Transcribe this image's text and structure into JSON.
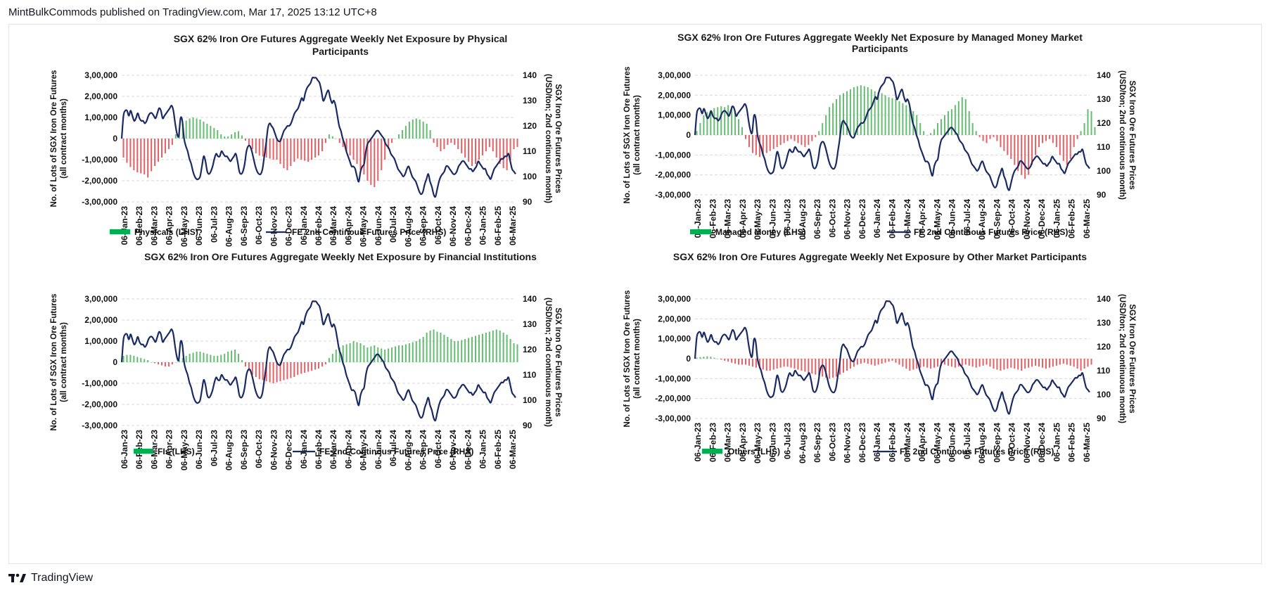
{
  "header": {
    "attribution": "MintBulkCommods published on TradingView.com, Mar 17, 2025 13:12 UTC+8"
  },
  "footer": {
    "brand": "TradingView"
  },
  "colors": {
    "positive": "#4cb25c",
    "negative": "#e0474c",
    "price_line": "#1a2a63",
    "grid": "#d9d9d9",
    "legend_green": "#00b050"
  },
  "shared": {
    "x_tick_labels": [
      "06-Jan-23",
      "06-Feb-23",
      "06-Mar-23",
      "06-Apr-23",
      "06-May-23",
      "06-Jun-23",
      "06-Jul-23",
      "06-Aug-23",
      "06-Sep-23",
      "06-Oct-23",
      "06-Nov-23",
      "06-Dec-23",
      "06-Jan-24",
      "06-Feb-24",
      "06-Mar-24",
      "06-Apr-24",
      "06-May-24",
      "06-Jun-24",
      "06-Jul-24",
      "06-Aug-24",
      "06-Sep-24",
      "06-Oct-24",
      "06-Nov-24",
      "06-Dec-24",
      "06-Jan-25",
      "06-Feb-25",
      "06-Mar-25"
    ],
    "y_left_ticks": [
      "3,00,000",
      "2,00,000",
      "1,00,000",
      "0",
      "-1,00,000",
      "-2,00,000",
      "-3,00,000"
    ],
    "y_right_ticks": [
      "140",
      "130",
      "120",
      "110",
      "100",
      "90"
    ],
    "ylabel_left": [
      "No. of Lots of SGX Iron Ore Futures",
      "(all contract months)"
    ],
    "ylabel_right": [
      "SGX Iron Ore Futures Prices",
      "(USD/ton; 2nd continuous month)"
    ],
    "price_series_name": "FE 2nd Continous Futures Price (RHS)",
    "price_values": [
      115,
      124,
      126,
      126,
      124,
      126,
      124,
      122,
      123,
      125,
      123,
      122,
      122,
      121,
      122,
      124,
      125,
      125,
      124,
      123,
      125,
      127,
      126,
      123,
      124,
      125,
      126,
      127,
      128,
      126,
      121,
      117,
      116,
      123,
      122,
      115,
      112,
      110,
      107,
      105,
      102,
      100,
      99,
      99,
      100,
      104,
      108,
      106,
      102,
      101,
      102,
      104,
      107,
      109,
      108,
      108,
      110,
      109,
      108,
      108,
      107,
      106,
      107,
      108,
      109,
      106,
      102,
      101,
      102,
      105,
      110,
      112,
      112,
      110,
      107,
      104,
      102,
      101,
      101,
      103,
      108,
      113,
      119,
      121,
      120,
      119,
      117,
      115,
      114,
      114,
      116,
      118,
      119,
      120,
      120,
      121,
      123,
      125,
      126,
      127,
      129,
      131,
      130,
      133,
      135,
      136,
      137,
      139,
      139,
      139,
      138,
      137,
      134,
      130,
      131,
      133,
      134,
      131,
      129,
      130,
      128,
      124,
      120,
      118,
      115,
      113,
      110,
      108,
      106,
      104,
      104,
      103,
      100,
      98,
      102,
      104,
      105,
      110,
      113,
      114,
      115,
      116,
      117,
      118,
      118,
      117,
      116,
      115,
      113,
      112,
      111,
      109,
      108,
      107,
      105,
      103,
      102,
      101,
      100,
      101,
      103,
      104,
      102,
      100,
      99,
      98,
      96,
      94,
      93,
      94,
      97,
      99,
      101,
      98,
      96,
      93,
      92,
      95,
      98,
      100,
      101,
      102,
      104,
      104,
      103,
      102,
      101,
      101,
      102,
      104,
      105,
      106,
      106,
      105,
      104,
      103,
      103,
      102,
      103,
      104,
      106,
      105,
      104,
      103,
      103,
      101,
      100,
      99,
      101,
      103,
      104,
      105,
      106,
      107,
      107,
      108,
      108,
      109,
      106,
      103,
      102,
      101
    ],
    "xlim": [
      0,
      113
    ],
    "y_left_range": [
      -300000,
      300000
    ],
    "y_right_range": [
      90,
      140
    ]
  },
  "chart_data": [
    {
      "type": "bar",
      "id": "physical",
      "title": [
        "SGX 62% Iron Ore Futures Aggregate Weekly Net Exposure by Physical",
        "Participants"
      ],
      "legend_bar": "Physicals (LHS)",
      "legend_line": "FE 2nd Continous Futures Price (RHS)",
      "values": [
        -90000,
        -115000,
        -135000,
        -150000,
        -160000,
        -165000,
        -170000,
        -185000,
        -155000,
        -130000,
        -110000,
        -90000,
        -70000,
        -50000,
        -30000,
        20000,
        50000,
        70000,
        85000,
        95000,
        100000,
        95000,
        90000,
        80000,
        70000,
        60000,
        50000,
        40000,
        20000,
        10000,
        10000,
        20000,
        30000,
        35000,
        15000,
        -10000,
        -30000,
        -50000,
        -70000,
        -80000,
        -85000,
        -90000,
        -95000,
        -100000,
        -100000,
        -120000,
        -140000,
        -150000,
        -130000,
        -110000,
        -95000,
        -100000,
        -105000,
        -110000,
        -100000,
        -90000,
        -80000,
        -60000,
        -20000,
        20000,
        10000,
        0,
        -20000,
        -40000,
        -60000,
        -80000,
        -100000,
        -120000,
        -150000,
        -170000,
        -200000,
        -220000,
        -230000,
        -200000,
        -150000,
        -100000,
        -50000,
        -20000,
        0,
        20000,
        40000,
        60000,
        80000,
        90000,
        95000,
        90000,
        80000,
        70000,
        40000,
        -20000,
        -40000,
        -60000,
        -50000,
        -30000,
        -20000,
        -30000,
        -50000,
        -70000,
        -90000,
        -110000,
        -130000,
        -120000,
        -100000,
        -80000,
        -60000,
        -40000,
        -60000,
        -90000,
        -120000,
        -140000,
        -150000,
        -100000,
        -50000,
        -40000
      ]
    },
    {
      "type": "bar",
      "id": "managed_money",
      "title": [
        "SGX 62% Iron Ore Futures Aggregate Weekly Net Exposure by Managed Money Market",
        "Participants"
      ],
      "legend_bar": "Managed Money (LHS)",
      "legend_line": "FE 2nd Continous Futures Price (RHS)",
      "values": [
        20000,
        60000,
        100000,
        115000,
        125000,
        135000,
        140000,
        145000,
        140000,
        150000,
        145000,
        120000,
        80000,
        40000,
        -20000,
        -60000,
        -90000,
        -100000,
        -110000,
        -100000,
        -90000,
        -80000,
        -70000,
        -60000,
        -50000,
        -40000,
        -30000,
        -20000,
        -30000,
        -40000,
        -50000,
        -60000,
        -50000,
        -30000,
        -10000,
        20000,
        60000,
        100000,
        140000,
        160000,
        180000,
        200000,
        210000,
        220000,
        230000,
        240000,
        245000,
        250000,
        245000,
        240000,
        230000,
        220000,
        215000,
        210000,
        200000,
        190000,
        185000,
        180000,
        170000,
        160000,
        150000,
        140000,
        120000,
        100000,
        60000,
        20000,
        0,
        10000,
        30000,
        60000,
        80000,
        100000,
        120000,
        130000,
        150000,
        170000,
        190000,
        180000,
        120000,
        60000,
        20000,
        -10000,
        -30000,
        -40000,
        -20000,
        -10000,
        -30000,
        -60000,
        -80000,
        -100000,
        -120000,
        -150000,
        -180000,
        -200000,
        -220000,
        -200000,
        -150000,
        -100000,
        -60000,
        -40000,
        -30000,
        -20000,
        -40000,
        -60000,
        -100000,
        -130000,
        -150000,
        -120000,
        -60000,
        -20000,
        20000,
        60000,
        130000,
        120000,
        40000
      ]
    },
    {
      "type": "bar",
      "id": "financial_institutions",
      "title": [
        "SGX 62% Iron Ore Futures Aggregate Weekly Net Exposure by Financial Institutions"
      ],
      "legend_bar": "FIs (LHS)",
      "legend_line": "FE 2nd Continous Futures Price (RHS)",
      "values": [
        30000,
        35000,
        35000,
        30000,
        25000,
        20000,
        15000,
        10000,
        0,
        -5000,
        -10000,
        -15000,
        -20000,
        -20000,
        -10000,
        0,
        10000,
        20000,
        30000,
        40000,
        45000,
        50000,
        50000,
        45000,
        40000,
        35000,
        30000,
        30000,
        35000,
        40000,
        50000,
        55000,
        60000,
        40000,
        10000,
        -20000,
        -40000,
        -60000,
        -70000,
        -80000,
        -85000,
        -90000,
        -95000,
        -100000,
        -95000,
        -90000,
        -85000,
        -80000,
        -75000,
        -70000,
        -60000,
        -55000,
        -50000,
        -45000,
        -40000,
        -35000,
        -30000,
        -20000,
        -10000,
        20000,
        40000,
        60000,
        70000,
        80000,
        85000,
        90000,
        100000,
        95000,
        90000,
        80000,
        70000,
        75000,
        80000,
        70000,
        65000,
        60000,
        65000,
        70000,
        75000,
        80000,
        80000,
        85000,
        90000,
        95000,
        100000,
        110000,
        120000,
        140000,
        150000,
        155000,
        145000,
        140000,
        130000,
        120000,
        110000,
        100000,
        100000,
        105000,
        110000,
        115000,
        120000,
        125000,
        130000,
        135000,
        140000,
        145000,
        150000,
        155000,
        150000,
        140000,
        130000,
        110000,
        90000,
        85000
      ]
    },
    {
      "type": "bar",
      "id": "others",
      "title": [
        "SGX 62% Iron Ore Futures Aggregate Weekly Net Exposure by Other Market Participants"
      ],
      "legend_bar": "Others (LHS)",
      "legend_line": "FE 2nd Continous Futures Price (RHS)",
      "values": [
        5000,
        8000,
        10000,
        12000,
        10000,
        5000,
        0,
        -5000,
        -10000,
        -15000,
        -20000,
        -25000,
        -30000,
        -30000,
        -30000,
        -35000,
        -40000,
        -45000,
        -50000,
        -55000,
        -60000,
        -60000,
        -55000,
        -50000,
        -45000,
        -40000,
        -40000,
        -45000,
        -50000,
        -55000,
        -60000,
        -65000,
        -70000,
        -75000,
        -80000,
        -85000,
        -90000,
        -95000,
        -100000,
        -95000,
        -90000,
        -80000,
        -70000,
        -60000,
        -50000,
        -40000,
        -30000,
        -25000,
        -20000,
        -25000,
        -30000,
        -35000,
        -30000,
        -25000,
        -20000,
        -15000,
        -10000,
        -20000,
        -30000,
        -40000,
        -50000,
        -60000,
        -55000,
        -50000,
        -45000,
        -40000,
        -45000,
        -50000,
        -45000,
        -40000,
        -35000,
        -30000,
        -35000,
        -40000,
        -45000,
        -40000,
        -35000,
        -30000,
        -35000,
        -40000,
        -45000,
        -40000,
        -35000,
        -30000,
        -40000,
        -50000,
        -55000,
        -60000,
        -55000,
        -50000,
        -45000,
        -50000,
        -55000,
        -60000,
        -50000,
        -45000,
        -40000,
        -35000,
        -40000,
        -45000,
        -50000,
        -45000,
        -40000,
        -35000,
        -30000,
        -25000,
        -30000,
        -35000,
        -40000,
        -50000,
        -60000,
        -50000,
        -40000,
        -30000
      ]
    }
  ]
}
